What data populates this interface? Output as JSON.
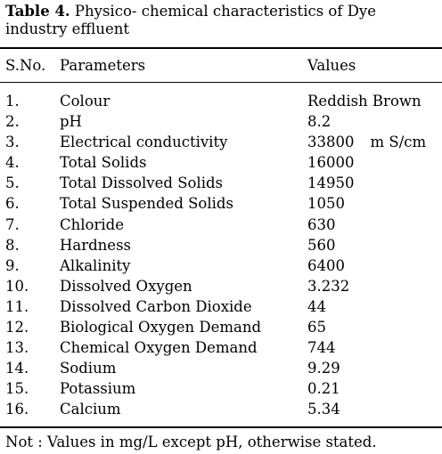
{
  "table": {
    "caption_label": "Table 4.",
    "caption_text": " Physico- chemical characteristics of Dye industry effluent",
    "headers": {
      "sno": "S.No.",
      "parameters": "Parameters",
      "values": "Values"
    },
    "rows": [
      {
        "sno": "1.",
        "parameter": "Colour",
        "value": "Reddish Brown",
        "unit": ""
      },
      {
        "sno": "2.",
        "parameter": "pH",
        "value": "8.2",
        "unit": ""
      },
      {
        "sno": "3.",
        "parameter": "Electrical conductivity",
        "value": "33800",
        "unit": "m S/cm"
      },
      {
        "sno": "4.",
        "parameter": "Total Solids",
        "value": "16000",
        "unit": ""
      },
      {
        "sno": "5.",
        "parameter": "Total Dissolved Solids",
        "value": "14950",
        "unit": ""
      },
      {
        "sno": "6.",
        "parameter": "Total Suspended Solids",
        "value": "1050",
        "unit": ""
      },
      {
        "sno": "7.",
        "parameter": "Chloride",
        "value": "630",
        "unit": ""
      },
      {
        "sno": "8.",
        "parameter": "Hardness",
        "value": "560",
        "unit": ""
      },
      {
        "sno": "9.",
        "parameter": "Alkalinity",
        "value": "6400",
        "unit": ""
      },
      {
        "sno": "10.",
        "parameter": "Dissolved Oxygen",
        "value": "3.232",
        "unit": ""
      },
      {
        "sno": "11.",
        "parameter": "Dissolved Carbon Dioxide",
        "value": "44",
        "unit": ""
      },
      {
        "sno": "12.",
        "parameter": "Biological Oxygen Demand",
        "value": "65",
        "unit": ""
      },
      {
        "sno": "13.",
        "parameter": "Chemical  Oxygen Demand",
        "value": "744",
        "unit": ""
      },
      {
        "sno": "14.",
        "parameter": "Sodium",
        "value": "9.29",
        "unit": ""
      },
      {
        "sno": "15.",
        "parameter": "Potassium",
        "value": "0.21",
        "unit": ""
      },
      {
        "sno": "16.",
        "parameter": "Calcium",
        "value": "5.34",
        "unit": ""
      }
    ],
    "footnote": "Not : Values in mg/L except pH, otherwise stated."
  }
}
